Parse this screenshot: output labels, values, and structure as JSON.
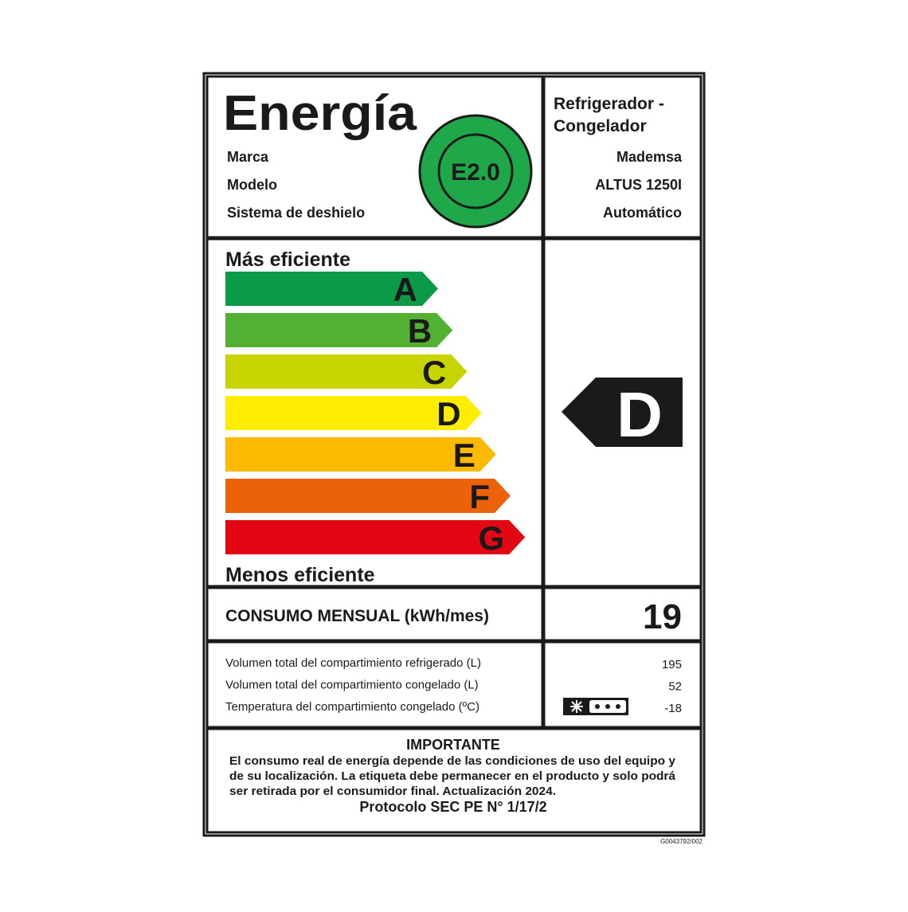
{
  "header": {
    "title": "Energía",
    "badge": "E2.0",
    "product_type": [
      "Refrigerador -",
      "Congelador"
    ],
    "fields": [
      {
        "label": "Marca",
        "value": "Mademsa"
      },
      {
        "label": "Modelo",
        "value": "ALTUS 1250I"
      },
      {
        "label": "Sistema de deshielo",
        "value": "Automático"
      }
    ]
  },
  "scale": {
    "top_label": "Más eficiente",
    "bottom_label": "Menos eficiente",
    "classes": [
      {
        "letter": "A",
        "color": "#0a9a48"
      },
      {
        "letter": "B",
        "color": "#52b033"
      },
      {
        "letter": "C",
        "color": "#c8d400"
      },
      {
        "letter": "D",
        "color": "#ffed00"
      },
      {
        "letter": "E",
        "color": "#fbba00"
      },
      {
        "letter": "F",
        "color": "#eb6209"
      },
      {
        "letter": "G",
        "color": "#e30613"
      }
    ],
    "rating": "D"
  },
  "consumption": {
    "label": "CONSUMO MENSUAL (kWh/mes)",
    "value": 19
  },
  "details": [
    {
      "label": "Volumen total del compartimiento refrigerado (L)",
      "value": 195
    },
    {
      "label": "Volumen total del compartimiento congelado (L)",
      "value": 52
    },
    {
      "label": "Temperatura del compartimiento congelado (ºC)",
      "value": -18
    }
  ],
  "notice": {
    "title": "IMPORTANTE",
    "lines": [
      "El consumo real de energía depende de las condiciones de uso del equipo y",
      "de su localización. La etiqueta debe permanecer en el producto y solo podrá",
      "ser retirada por el consumidor final. Actualización 2024."
    ],
    "protocol": "Protocolo SEC PE N° 1/17/2"
  },
  "code": "G0043792/002"
}
